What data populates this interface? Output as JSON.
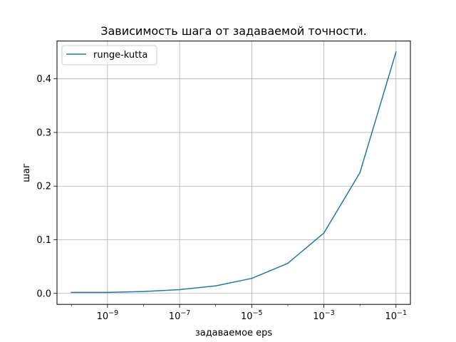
{
  "chart_data": {
    "type": "line",
    "title": "Зависимость шага от задаваемой точности.",
    "xlabel": "задаваемое eps",
    "ylabel": "шаг",
    "xscale": "log",
    "xlim": [
      3.98e-11,
      0.251
    ],
    "ylim": [
      -0.0205,
      0.4705
    ],
    "x_ticks": [
      {
        "value": 1e-09,
        "base": "10",
        "exp": "−9"
      },
      {
        "value": 1e-07,
        "base": "10",
        "exp": "−7"
      },
      {
        "value": 1e-05,
        "base": "10",
        "exp": "−5"
      },
      {
        "value": 0.001,
        "base": "10",
        "exp": "−3"
      },
      {
        "value": 0.1,
        "base": "10",
        "exp": "−1"
      }
    ],
    "y_ticks": [
      {
        "value": 0.0,
        "label": "0.0"
      },
      {
        "value": 0.1,
        "label": "0.1"
      },
      {
        "value": 0.2,
        "label": "0.2"
      },
      {
        "value": 0.3,
        "label": "0.3"
      },
      {
        "value": 0.4,
        "label": "0.4"
      }
    ],
    "grid": true,
    "legend_position": "top-left",
    "series": [
      {
        "name": "runge-kutta",
        "color": "#1f77b4",
        "x": [
          1e-10,
          1e-09,
          1e-08,
          1e-07,
          1e-06,
          1e-05,
          0.0001,
          0.001,
          0.01,
          0.1
        ],
        "y": [
          0.0018,
          0.0018,
          0.0035,
          0.007,
          0.014,
          0.028,
          0.056,
          0.1125,
          0.225,
          0.45
        ]
      }
    ]
  }
}
